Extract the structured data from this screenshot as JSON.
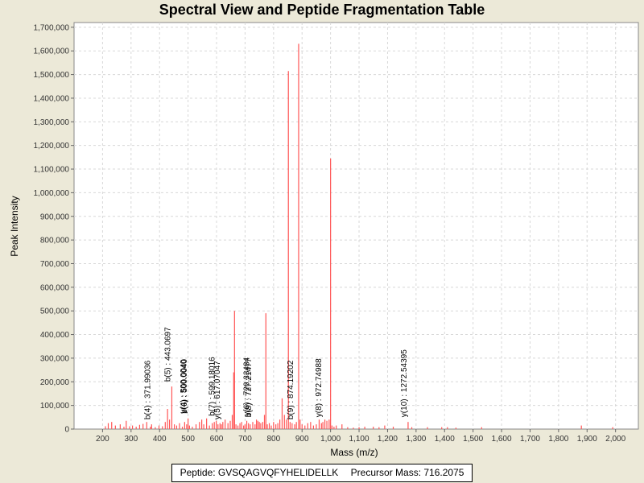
{
  "chart_data": {
    "type": "bar",
    "title": "Spectral View and Peptide Fragmentation Table",
    "xlabel": "Mass (m/z)",
    "ylabel": "Peak Intensity",
    "xlim": [
      100,
      2080
    ],
    "ylim": [
      0,
      1720000
    ],
    "xticks": [
      200,
      300,
      400,
      500,
      600,
      700,
      800,
      900,
      1000,
      1100,
      1200,
      1300,
      1400,
      1500,
      1600,
      1700,
      1800,
      1900,
      2000
    ],
    "xtick_labels": [
      "200",
      "300",
      "400",
      "500",
      "600",
      "700",
      "800",
      "900",
      "1,000",
      "1,100",
      "1,200",
      "1,300",
      "1,400",
      "1,500",
      "1,600",
      "1,700",
      "1,800",
      "1,900",
      "2,000"
    ],
    "yticks": [
      0,
      100000,
      200000,
      300000,
      400000,
      500000,
      600000,
      700000,
      800000,
      900000,
      1000000,
      1100000,
      1200000,
      1300000,
      1400000,
      1500000,
      1600000,
      1700000
    ],
    "ytick_labels": [
      "0",
      "100,000",
      "200,000",
      "300,000",
      "400,000",
      "500,000",
      "600,000",
      "700,000",
      "800,000",
      "900,000",
      "1,000,000",
      "1,100,000",
      "1,200,000",
      "1,300,000",
      "1,400,000",
      "1,500,000",
      "1,600,000",
      "1,700,000"
    ],
    "grid": true,
    "series": [
      {
        "name": "peaks",
        "color": "#ff5555",
        "points": [
          [
            210,
            12000
          ],
          [
            220,
            25000
          ],
          [
            232,
            30000
          ],
          [
            245,
            15000
          ],
          [
            262,
            20000
          ],
          [
            275,
            10000
          ],
          [
            283,
            35000
          ],
          [
            295,
            12000
          ],
          [
            305,
            15000
          ],
          [
            318,
            10000
          ],
          [
            330,
            18000
          ],
          [
            342,
            22000
          ],
          [
            355,
            30000
          ],
          [
            368,
            10000
          ],
          [
            372,
            20000
          ],
          [
            385,
            8000
          ],
          [
            398,
            15000
          ],
          [
            410,
            12000
          ],
          [
            420,
            30000
          ],
          [
            428,
            85000
          ],
          [
            435,
            40000
          ],
          [
            443,
            180000
          ],
          [
            452,
            20000
          ],
          [
            460,
            15000
          ],
          [
            470,
            25000
          ],
          [
            480,
            10000
          ],
          [
            488,
            30000
          ],
          [
            495,
            20000
          ],
          [
            500,
            45000
          ],
          [
            505,
            15000
          ],
          [
            515,
            10000
          ],
          [
            528,
            20000
          ],
          [
            540,
            30000
          ],
          [
            548,
            40000
          ],
          [
            555,
            20000
          ],
          [
            565,
            45000
          ],
          [
            575,
            15000
          ],
          [
            585,
            25000
          ],
          [
            592,
            30000
          ],
          [
            599,
            35000
          ],
          [
            605,
            20000
          ],
          [
            612,
            25000
          ],
          [
            617,
            20000
          ],
          [
            622,
            30000
          ],
          [
            630,
            40000
          ],
          [
            640,
            25000
          ],
          [
            648,
            35000
          ],
          [
            655,
            60000
          ],
          [
            660,
            240000
          ],
          [
            663,
            500000
          ],
          [
            668,
            20000
          ],
          [
            675,
            15000
          ],
          [
            682,
            25000
          ],
          [
            688,
            30000
          ],
          [
            695,
            15000
          ],
          [
            700,
            20000
          ],
          [
            706,
            35000
          ],
          [
            712,
            25000
          ],
          [
            718,
            20000
          ],
          [
            727,
            30000
          ],
          [
            735,
            20000
          ],
          [
            740,
            40000
          ],
          [
            745,
            35000
          ],
          [
            750,
            30000
          ],
          [
            755,
            25000
          ],
          [
            762,
            30000
          ],
          [
            768,
            60000
          ],
          [
            773,
            490000
          ],
          [
            778,
            20000
          ],
          [
            785,
            25000
          ],
          [
            792,
            15000
          ],
          [
            800,
            30000
          ],
          [
            808,
            20000
          ],
          [
            815,
            25000
          ],
          [
            822,
            40000
          ],
          [
            830,
            130000
          ],
          [
            838,
            60000
          ],
          [
            845,
            40000
          ],
          [
            852,
            1515000
          ],
          [
            858,
            30000
          ],
          [
            865,
            25000
          ],
          [
            874,
            20000
          ],
          [
            880,
            30000
          ],
          [
            888,
            1630000
          ],
          [
            893,
            40000
          ],
          [
            900,
            20000
          ],
          [
            910,
            15000
          ],
          [
            920,
            25000
          ],
          [
            930,
            30000
          ],
          [
            940,
            15000
          ],
          [
            950,
            20000
          ],
          [
            960,
            40000
          ],
          [
            968,
            25000
          ],
          [
            973,
            30000
          ],
          [
            980,
            40000
          ],
          [
            987,
            35000
          ],
          [
            995,
            40000
          ],
          [
            1000,
            1145000
          ],
          [
            1005,
            15000
          ],
          [
            1012,
            10000
          ],
          [
            1020,
            15000
          ],
          [
            1040,
            20000
          ],
          [
            1060,
            8000
          ],
          [
            1080,
            6000
          ],
          [
            1100,
            8000
          ],
          [
            1120,
            10000
          ],
          [
            1150,
            10000
          ],
          [
            1170,
            8000
          ],
          [
            1190,
            15000
          ],
          [
            1220,
            10000
          ],
          [
            1272,
            30000
          ],
          [
            1285,
            8000
          ],
          [
            1340,
            8000
          ],
          [
            1390,
            8000
          ],
          [
            1410,
            8000
          ],
          [
            1440,
            6000
          ],
          [
            1530,
            8000
          ],
          [
            1880,
            15000
          ],
          [
            1990,
            8000
          ]
        ]
      }
    ],
    "annotations": [
      {
        "x": 371.99036,
        "label": "b(4) : 371.99036",
        "y": 20000
      },
      {
        "x": 443.0697,
        "label": "b(5) : 443.0697",
        "y": 180000
      },
      {
        "x": 498.0,
        "label": "y(4) : 500.0040",
        "y": 45000
      },
      {
        "x": 501.0,
        "label": "b(6) : 500.0040",
        "y": 45000
      },
      {
        "x": 599.18016,
        "label": "b(7) : 599.18016",
        "y": 35000
      },
      {
        "x": 617.07047,
        "label": "y(5) : 617.07047",
        "y": 20000
      },
      {
        "x": 720.33484,
        "label": "y(6) : 720.33484",
        "y": 35000
      },
      {
        "x": 727.21477,
        "label": "b(8) : 727.21477",
        "y": 30000
      },
      {
        "x": 874.19202,
        "label": "b(9) : 874.19202",
        "y": 20000
      },
      {
        "x": 972.74988,
        "label": "y(8) : 972.74988",
        "y": 30000
      },
      {
        "x": 1272.54395,
        "label": "y(10) : 1272.54395",
        "y": 30000
      }
    ]
  },
  "legend": {
    "peptide": "Peptide: GVSQAGVQFYHELIDELLK",
    "precursor": "Precursor Mass: 716.2075"
  }
}
